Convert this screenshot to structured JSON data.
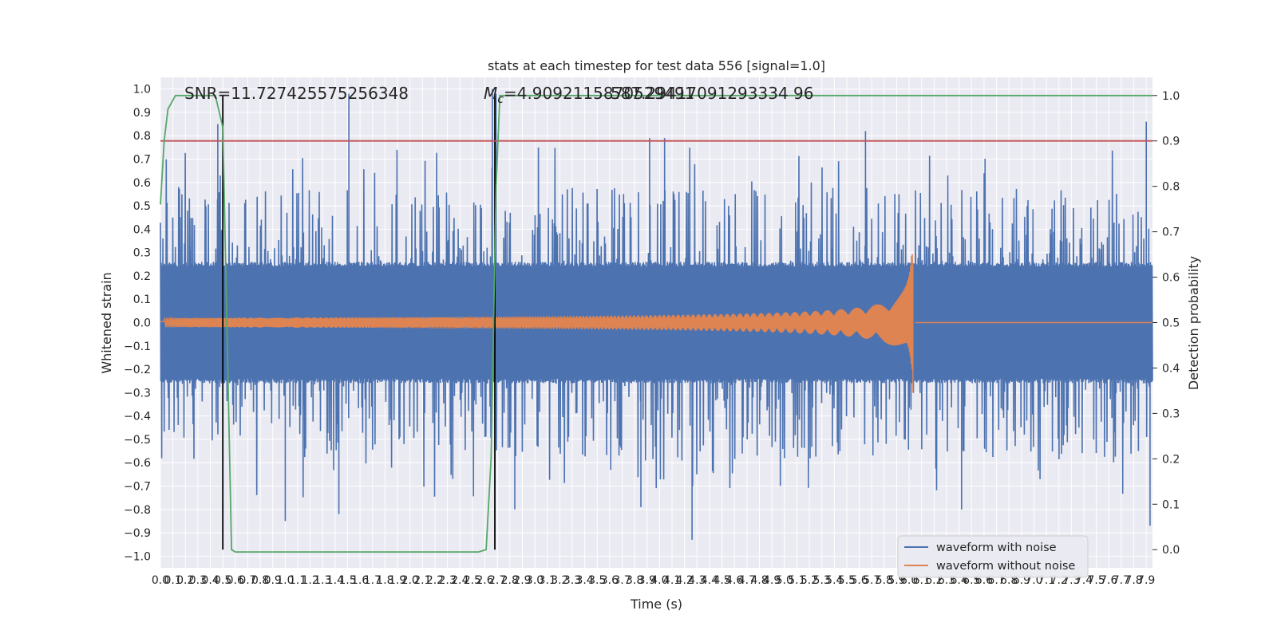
{
  "chart_data": {
    "type": "line",
    "title": "stats at each timestep for test data 556 [signal=1.0]",
    "xlabel": "Time (s)",
    "ylabel": "Whitened strain",
    "ylabel_right": "Detection probability",
    "xlim": [
      0.0,
      7.95
    ],
    "ylim": [
      -1.05,
      1.05
    ],
    "ylim_right": [
      -0.04,
      1.04
    ],
    "x_ticks": [
      "0.0",
      "0.1",
      "0.2",
      "0.3",
      "0.4",
      "0.5",
      "0.6",
      "0.7",
      "0.8",
      "0.9",
      "1.0",
      "1.1",
      "1.2",
      "1.3",
      "1.4",
      "1.5",
      "1.6",
      "1.7",
      "1.8",
      "1.9",
      "2.0",
      "2.1",
      "2.2",
      "2.3",
      "2.4",
      "2.5",
      "2.6",
      "2.7",
      "2.8",
      "2.9",
      "3.0",
      "3.1",
      "3.2",
      "3.3",
      "3.4",
      "3.5",
      "3.6",
      "3.7",
      "3.8",
      "3.9",
      "4.0",
      "4.1",
      "4.2",
      "4.3",
      "4.4",
      "4.5",
      "4.6",
      "4.7",
      "4.8",
      "4.9",
      "5.0",
      "5.1",
      "5.2",
      "5.3",
      "5.4",
      "5.5",
      "5.6",
      "5.7",
      "5.8",
      "5.9",
      "6.0",
      "6.1",
      "6.2",
      "6.3",
      "6.4",
      "6.5",
      "6.6",
      "6.7",
      "6.8",
      "6.9",
      "7.0",
      "7.1",
      "7.2",
      "7.3",
      "7.4",
      "7.5",
      "7.6",
      "7.7",
      "7.8",
      "7.9"
    ],
    "y_ticks": [
      "1.0",
      "0.9",
      "0.8",
      "0.7",
      "0.6",
      "0.5",
      "0.4",
      "0.3",
      "0.2",
      "0.1",
      "0.0",
      "−0.1",
      "−0.2",
      "−0.3",
      "−0.4",
      "−0.5",
      "−0.6",
      "−0.7",
      "−0.8",
      "−0.9",
      "−1.0"
    ],
    "y_ticks_right": [
      "1.0",
      "0.9",
      "0.8",
      "0.7",
      "0.6",
      "0.5",
      "0.4",
      "0.3",
      "0.2",
      "0.1",
      "0.0"
    ],
    "annotations": {
      "snr": "SNR=11.727425575256348",
      "mc_prefix": "M",
      "mc_sub": "c",
      "mc_value": "=4.9092115870529491",
      "overlap": "587.29417091293334 96"
    },
    "series": [
      {
        "name": "waveform with noise",
        "color": "#4c72b0",
        "axis": "left",
        "note": "dense noise time series; typical envelope ~±0.25, spikes up to ~±1.0",
        "spikes": [
          [
            0.46,
            0.85
          ],
          [
            0.48,
            0.63
          ],
          [
            1.51,
            0.98
          ],
          [
            2.66,
            1.0
          ],
          [
            2.69,
            0.98
          ],
          [
            3.92,
            0.79
          ],
          [
            4.04,
            0.79
          ],
          [
            5.65,
            0.82
          ],
          [
            7.9,
            0.86
          ],
          [
            1.0,
            -0.85
          ],
          [
            1.43,
            -0.82
          ],
          [
            2.84,
            -0.8
          ],
          [
            3.85,
            -0.79
          ],
          [
            4.26,
            -0.93
          ],
          [
            6.42,
            -0.8
          ],
          [
            7.93,
            -0.87
          ]
        ]
      },
      {
        "name": "waveform without noise",
        "color": "#dd8452",
        "axis": "left",
        "note": "chirp: amplitude ~0.02 rising to peak ~0.25 / -0.3 at merger near t=6.03 s, then ~0"
      },
      {
        "color": "#55a868",
        "axis": "right",
        "x": [
          0.0,
          0.03,
          0.06,
          0.12,
          0.2,
          0.3,
          0.44,
          0.5,
          0.54,
          0.57,
          0.6,
          0.65,
          0.8,
          1.5,
          2.5,
          2.55,
          2.61,
          2.65,
          2.69,
          2.72,
          3.0,
          7.95
        ],
        "values": [
          0.76,
          0.9,
          0.97,
          1.0,
          1.0,
          1.0,
          1.0,
          0.93,
          0.4,
          0.0,
          -0.005,
          -0.005,
          -0.005,
          -0.005,
          -0.005,
          -0.005,
          0.0,
          0.2,
          0.8,
          1.0,
          1.0,
          1.0
        ]
      },
      {
        "color": "#c44e52",
        "axis": "right",
        "note": "threshold",
        "x": [
          0.0,
          7.95
        ],
        "values": [
          0.9,
          0.9
        ]
      }
    ],
    "vlines": [
      0.5,
      2.68
    ],
    "vline_color": "#000000",
    "grid": true,
    "legend": "bottom-right",
    "colors": {
      "axes_bg": "#eaeaf2",
      "grid": "#ffffff",
      "text": "#262626"
    }
  }
}
